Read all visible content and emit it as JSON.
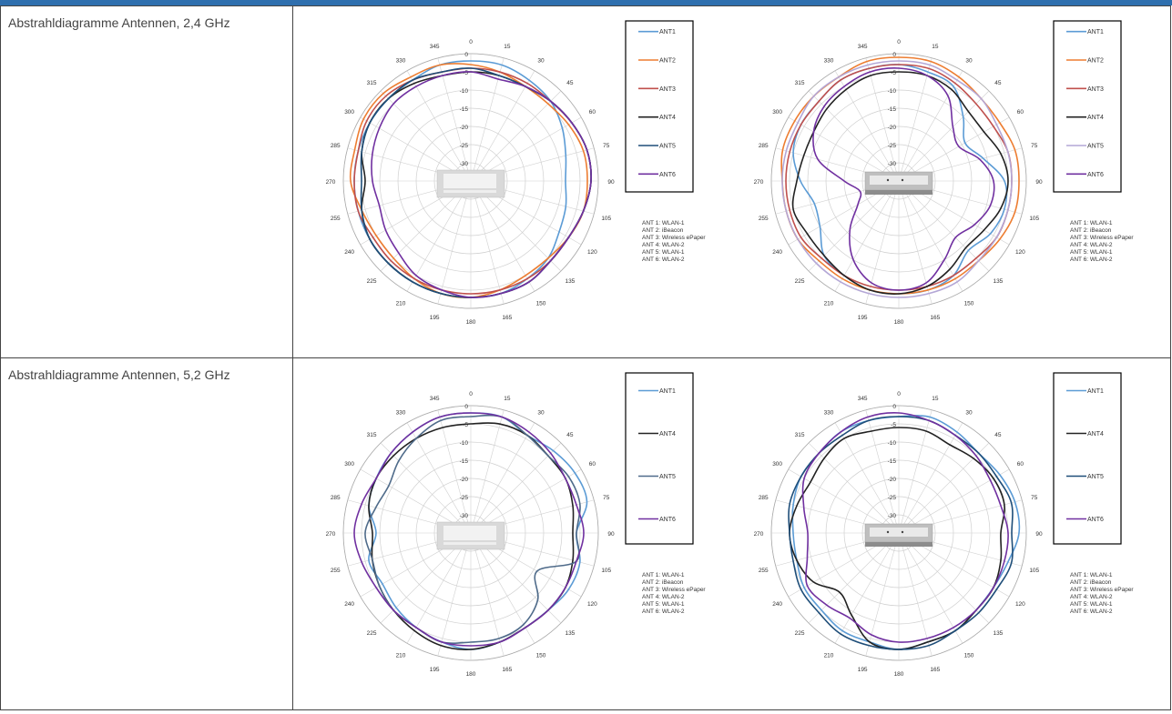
{
  "rows": [
    {
      "label": "Abstrahldiagramme Antennen, 2,4 GHz"
    },
    {
      "label": "Abstrahldiagramme Antennen, 5,2 GHz"
    }
  ],
  "colors": {
    "header_bar": "#2f6fae",
    "ANT 1": "#5b9bd5",
    "ANT 2": "#ed7d31",
    "ANT 3": "#c0504d",
    "ANT 4": "#222222",
    "ANT 5": "#1f4e79",
    "ANT 5 light": "#b4a7d6",
    "ANT 6": "#7030a0"
  },
  "angle_labels": [
    "0",
    "15",
    "30",
    "45",
    "60",
    "75",
    "90",
    "105",
    "120",
    "135",
    "150",
    "165",
    "180",
    "195",
    "210",
    "225",
    "240",
    "255",
    "270",
    "285",
    "300",
    "315",
    "330",
    "345"
  ],
  "radial_labels": [
    "0",
    "-5",
    "-10",
    "-15",
    "-20",
    "-25",
    "-30",
    "-35"
  ],
  "antenna_notes": [
    "ANT 1: WLAN-1",
    "ANT 2: iBeacon",
    "ANT 3: Wireless ePaper",
    "ANT 4: WLAN-2",
    "ANT 5: WLAN-1",
    "ANT 6: WLAN-2"
  ],
  "chart_data": [
    {
      "type": "polar",
      "band": "2,4 GHz",
      "view": "side",
      "r_range": [
        -35,
        0
      ],
      "legend": [
        "ANT1",
        "ANT2",
        "ANT3",
        "ANT4",
        "ANT5",
        "ANT6"
      ],
      "series": [
        {
          "name": "ANT1",
          "color": "#5b9bd5",
          "values": [
            -2,
            -2,
            -3,
            -4,
            -6,
            -8,
            -9,
            -8,
            -7,
            -5,
            -4,
            -3,
            -3,
            -3,
            -3,
            -3,
            -3,
            -3,
            -3,
            -3,
            -3,
            -3,
            -3,
            -2
          ]
        },
        {
          "name": "ANT2",
          "color": "#ed7d31",
          "values": [
            -3,
            -4,
            -5,
            -5,
            -4,
            -3,
            -3,
            -3,
            -4,
            -5,
            -5,
            -4,
            -3,
            -3,
            -4,
            -5,
            -5,
            -4,
            -2,
            -2,
            -1,
            -1,
            -2,
            -2
          ]
        },
        {
          "name": "ANT3",
          "color": "#c0504d",
          "values": [
            -4,
            -4,
            -4,
            -4,
            -3,
            -2,
            -2,
            -3,
            -4,
            -4,
            -4,
            -4,
            -4,
            -4,
            -4,
            -4,
            -4,
            -3,
            -3,
            -3,
            -2,
            -2,
            -3,
            -4
          ]
        },
        {
          "name": "ANT4",
          "color": "#222222",
          "values": [
            -5,
            -5,
            -5,
            -4,
            -3,
            -2,
            -2,
            -3,
            -4,
            -4,
            -3,
            -3,
            -3,
            -3,
            -3,
            -3,
            -3,
            -4,
            -6,
            -4,
            -3,
            -3,
            -4,
            -5
          ]
        },
        {
          "name": "ANT5",
          "color": "#1f4e79",
          "values": [
            -4,
            -5,
            -5,
            -4,
            -3,
            -2,
            -2,
            -3,
            -4,
            -4,
            -3,
            -3,
            -3,
            -3,
            -3,
            -3,
            -3,
            -4,
            -5,
            -4,
            -3,
            -3,
            -3,
            -4
          ]
        },
        {
          "name": "ANT6",
          "color": "#7030a0",
          "values": [
            -5,
            -6,
            -5,
            -4,
            -3,
            -2,
            -2,
            -3,
            -4,
            -4,
            -3,
            -3,
            -3,
            -4,
            -5,
            -7,
            -8,
            -9,
            -8,
            -7,
            -6,
            -5,
            -5,
            -5
          ]
        }
      ]
    },
    {
      "type": "polar",
      "band": "2,4 GHz",
      "view": "front",
      "r_range": [
        -35,
        0
      ],
      "legend": [
        "ANT1",
        "ANT2",
        "ANT3",
        "ANT4",
        "ANT5",
        "ANT6"
      ],
      "series": [
        {
          "name": "ANT1",
          "color": "#5b9bd5",
          "values": [
            -3,
            -4,
            -5,
            -10,
            -14,
            -11,
            -6,
            -5,
            -6,
            -8,
            -5,
            -4,
            -4,
            -4,
            -5,
            -6,
            -10,
            -11,
            -8,
            -5,
            -4,
            -4,
            -3,
            -3
          ]
        },
        {
          "name": "ANT2",
          "color": "#ed7d31",
          "values": [
            -1,
            -1,
            -2,
            -3,
            -3,
            -2,
            -2,
            -2,
            -3,
            -4,
            -4,
            -4,
            -4,
            -4,
            -4,
            -4,
            -3,
            -3,
            -3,
            -2,
            -2,
            -2,
            -2,
            -1
          ]
        },
        {
          "name": "ANT3",
          "color": "#c0504d",
          "values": [
            -3,
            -3,
            -4,
            -5,
            -5,
            -4,
            -4,
            -4,
            -4,
            -5,
            -5,
            -5,
            -5,
            -5,
            -5,
            -5,
            -4,
            -4,
            -4,
            -4,
            -4,
            -4,
            -3,
            -3
          ]
        },
        {
          "name": "ANT4",
          "color": "#222222",
          "values": [
            -5,
            -5,
            -6,
            -8,
            -8,
            -6,
            -5,
            -6,
            -8,
            -9,
            -7,
            -5,
            -4,
            -4,
            -5,
            -6,
            -6,
            -5,
            -7,
            -8,
            -8,
            -7,
            -6,
            -5
          ]
        },
        {
          "name": "ANT5",
          "color": "#b4a7d6",
          "values": [
            -2,
            -2,
            -3,
            -3,
            -4,
            -4,
            -4,
            -4,
            -4,
            -4,
            -3,
            -3,
            -3,
            -3,
            -3,
            -3,
            -3,
            -3,
            -3,
            -3,
            -3,
            -2,
            -2,
            -2
          ]
        },
        {
          "name": "ANT6",
          "color": "#7030a0",
          "values": [
            -4,
            -5,
            -8,
            -14,
            -16,
            -12,
            -9,
            -9,
            -11,
            -13,
            -10,
            -6,
            -5,
            -6,
            -10,
            -16,
            -22,
            -24,
            -20,
            -12,
            -8,
            -6,
            -5,
            -4
          ]
        }
      ]
    },
    {
      "type": "polar",
      "band": "5,2 GHz",
      "view": "side",
      "r_range": [
        -35,
        0
      ],
      "legend": [
        "ANT1",
        "ANT4",
        "ANT5",
        "ANT6"
      ],
      "series": [
        {
          "name": "ANT1",
          "color": "#5b9bd5",
          "values": [
            -2,
            -2,
            -4,
            -3,
            -2,
            -2,
            -6,
            -4,
            -4,
            -5,
            -5,
            -4,
            -3,
            -4,
            -5,
            -6,
            -7,
            -6,
            -9,
            -6,
            -5,
            -4,
            -3,
            -2
          ]
        },
        {
          "name": "ANT4",
          "color": "#222222",
          "values": [
            -5,
            -4,
            -4,
            -5,
            -5,
            -6,
            -7,
            -6,
            -5,
            -5,
            -5,
            -4,
            -3,
            -3,
            -4,
            -5,
            -6,
            -7,
            -8,
            -6,
            -5,
            -5,
            -5,
            -5
          ]
        },
        {
          "name": "ANT5",
          "color": "#4f6b8a",
          "values": [
            -3,
            -2,
            -4,
            -5,
            -4,
            -4,
            -6,
            -5,
            -14,
            -9,
            -6,
            -5,
            -5,
            -4,
            -5,
            -5,
            -6,
            -7,
            -6,
            -8,
            -9,
            -7,
            -5,
            -3
          ]
        },
        {
          "name": "ANT6",
          "color": "#7030a0",
          "values": [
            -2,
            -2,
            -3,
            -4,
            -5,
            -5,
            -4,
            -5,
            -5,
            -5,
            -5,
            -4,
            -4,
            -4,
            -5,
            -5,
            -5,
            -4,
            -3,
            -4,
            -5,
            -4,
            -3,
            -2
          ]
        }
      ]
    },
    {
      "type": "polar",
      "band": "5,2 GHz",
      "view": "front",
      "r_range": [
        -35,
        0
      ],
      "legend": [
        "ANT1",
        "ANT4",
        "ANT5",
        "ANT6"
      ],
      "series": [
        {
          "name": "ANT1",
          "color": "#5b9bd5",
          "values": [
            -3,
            -2,
            -3,
            -4,
            -3,
            -2,
            -2,
            -4,
            -5,
            -5,
            -4,
            -4,
            -3,
            -4,
            -4,
            -5,
            -5,
            -6,
            -6,
            -5,
            -4,
            -4,
            -3,
            -3
          ]
        },
        {
          "name": "ANT4",
          "color": "#222222",
          "values": [
            -6,
            -6,
            -7,
            -6,
            -5,
            -5,
            -7,
            -6,
            -5,
            -5,
            -4,
            -4,
            -3,
            -4,
            -9,
            -12,
            -8,
            -6,
            -5,
            -6,
            -7,
            -6,
            -5,
            -6
          ]
        },
        {
          "name": "ANT5",
          "color": "#1f4e79",
          "values": [
            -3,
            -3,
            -4,
            -4,
            -4,
            -3,
            -4,
            -3,
            -4,
            -4,
            -4,
            -3,
            -3,
            -3,
            -3,
            -4,
            -4,
            -5,
            -5,
            -4,
            -4,
            -4,
            -4,
            -3
          ]
        },
        {
          "name": "ANT6",
          "color": "#7030a0",
          "values": [
            -2,
            -3,
            -4,
            -5,
            -6,
            -6,
            -5,
            -5,
            -5,
            -5,
            -5,
            -5,
            -5,
            -6,
            -8,
            -7,
            -6,
            -9,
            -10,
            -8,
            -5,
            -4,
            -3,
            -2
          ]
        }
      ]
    }
  ]
}
